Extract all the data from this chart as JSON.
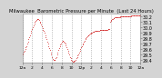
{
  "title": "Milwaukee  Barometric Pressure per Minute  (Last 24 Hours)",
  "bg_color": "#d4d4d4",
  "plot_bg_color": "#ffffff",
  "line_color": "#cc0000",
  "grid_color": "#999999",
  "ylim": [
    29.35,
    30.25
  ],
  "yticks": [
    29.4,
    29.5,
    29.6,
    29.7,
    29.8,
    29.9,
    30.0,
    30.1,
    30.2
  ],
  "ylabel_fontsize": 3.5,
  "title_fontsize": 3.8,
  "y_values": [
    29.5,
    29.52,
    29.55,
    29.57,
    29.6,
    29.63,
    29.66,
    29.7,
    29.74,
    29.78,
    29.82,
    29.86,
    29.9,
    29.93,
    29.97,
    30.0,
    30.04,
    30.07,
    30.1,
    30.12,
    30.14,
    30.15,
    30.16,
    30.15,
    30.13,
    30.11,
    30.08,
    30.05,
    30.02,
    29.99,
    29.96,
    29.93,
    29.9,
    29.86,
    29.82,
    29.78,
    29.74,
    29.7,
    29.66,
    29.62,
    29.58,
    29.54,
    29.5,
    29.46,
    29.42,
    29.4,
    29.4,
    29.41,
    29.43,
    29.46,
    29.5,
    29.54,
    29.58,
    29.62,
    29.65,
    29.68,
    29.71,
    29.73,
    29.75,
    29.75,
    29.74,
    29.72,
    29.7,
    29.67,
    29.64,
    29.61,
    29.57,
    29.53,
    29.5,
    29.46,
    29.43,
    29.4,
    29.38,
    29.37,
    29.37,
    29.38,
    29.39,
    29.41,
    29.43,
    29.45,
    29.48,
    29.51,
    29.54,
    29.57,
    29.6,
    29.63,
    29.66,
    29.68,
    29.71,
    29.73,
    29.76,
    29.78,
    29.8,
    29.82,
    29.84,
    29.85,
    29.86,
    29.87,
    29.88,
    29.89,
    29.9,
    29.91,
    29.92,
    29.92,
    29.92,
    29.93,
    29.93,
    29.93,
    29.93,
    29.94,
    29.94,
    29.94,
    29.95,
    29.95,
    29.95,
    29.96,
    29.96,
    29.96,
    29.96,
    29.96,
    29.96,
    29.96,
    29.96,
    29.96,
    29.97,
    29.97,
    29.97,
    30.1,
    30.12,
    30.14,
    30.15,
    30.16,
    30.17,
    30.17,
    30.18,
    30.18,
    30.18,
    30.18,
    30.19,
    30.19,
    30.19,
    30.19,
    30.2,
    30.2,
    30.2,
    30.2,
    30.2,
    30.2,
    30.2,
    30.21,
    30.21,
    30.21,
    30.21,
    30.21,
    30.21,
    30.21,
    30.21,
    30.21,
    30.22,
    30.22,
    30.22,
    30.22,
    30.22,
    30.22,
    30.22,
    30.22,
    30.22,
    30.22,
    30.22,
    30.22,
    30.22,
    30.22
  ],
  "n_xticks": 13,
  "xtick_labels": [
    "12a",
    "2",
    "4",
    "6",
    "8",
    "10",
    "12p",
    "2",
    "4",
    "6",
    "8",
    "10",
    "12a"
  ]
}
